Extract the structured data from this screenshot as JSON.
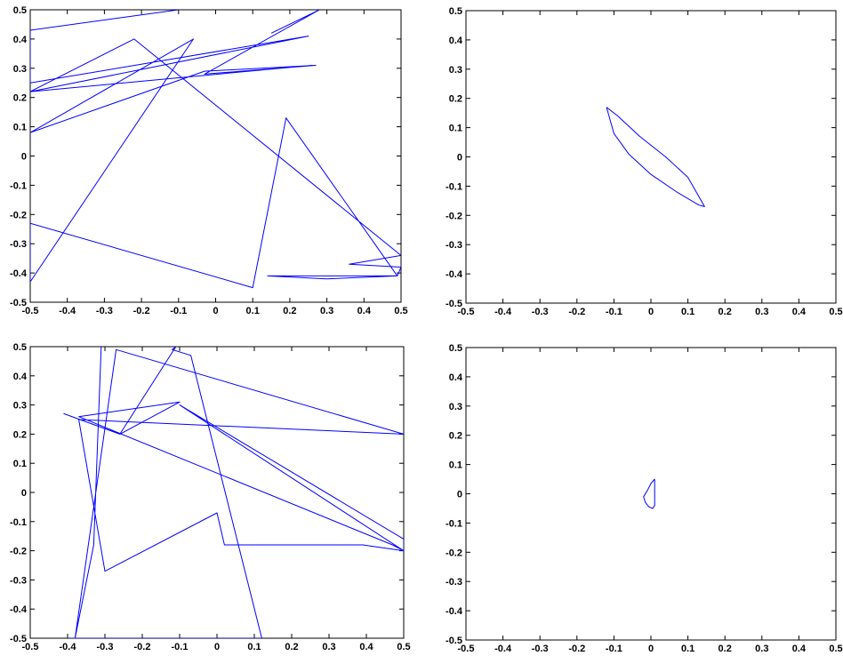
{
  "chart_data": [
    {
      "type": "line",
      "xlim": [
        -0.5,
        0.5
      ],
      "ylim": [
        -0.5,
        0.5
      ],
      "xticks": [
        "-0.5",
        "-0.4",
        "-0.3",
        "-0.2",
        "-0.1",
        "0",
        "0.1",
        "0.2",
        "0.3",
        "0.4",
        "0.5"
      ],
      "yticks": [
        "-0.5",
        "-0.4",
        "-0.3",
        "-0.2",
        "-0.1",
        "0",
        "0.1",
        "0.2",
        "0.3",
        "0.4",
        "0.5"
      ],
      "grid": false,
      "series": [
        {
          "color": "#0000ff",
          "x": [
            -0.1,
            -0.5,
            -0.5,
            0.25,
            -0.5,
            0.26,
            -0.5,
            -0.22,
            0.5,
            0.36,
            0.5,
            0.49,
            0.3,
            0.14,
            0.49,
            0.19,
            0.1,
            -0.5,
            -0.5,
            -0.06,
            -0.5,
            -0.5,
            -0.03,
            0.27,
            -0.03,
            0.28,
            0.15
          ],
          "y": [
            0.5,
            0.43,
            0.25,
            0.41,
            0.22,
            0.31,
            0.22,
            0.4,
            -0.34,
            -0.37,
            -0.38,
            -0.41,
            -0.42,
            -0.41,
            -0.41,
            0.13,
            -0.45,
            -0.23,
            -0.43,
            0.4,
            0.08,
            0.08,
            0.29,
            0.31,
            0.28,
            0.5,
            0.42
          ]
        }
      ]
    },
    {
      "type": "line",
      "xlim": [
        -0.5,
        0.5
      ],
      "ylim": [
        -0.5,
        0.5
      ],
      "xticks": [
        "-0.5",
        "-0.4",
        "-0.3",
        "-0.2",
        "-0.1",
        "0",
        "0.1",
        "0.2",
        "0.3",
        "0.4",
        "0.5"
      ],
      "yticks": [
        "-0.5",
        "-0.4",
        "-0.3",
        "-0.2",
        "-0.1",
        "0",
        "0.1",
        "0.2",
        "0.3",
        "0.4",
        "0.5"
      ],
      "grid": false,
      "series": [
        {
          "color": "#0000ff",
          "x": [
            -0.12,
            -0.09,
            -0.03,
            0.04,
            0.1,
            0.145,
            0.13,
            0.07,
            0.0,
            -0.06,
            -0.1,
            -0.12
          ],
          "y": [
            0.17,
            0.14,
            0.07,
            0.0,
            -0.07,
            -0.17,
            -0.165,
            -0.12,
            -0.06,
            0.01,
            0.08,
            0.17
          ]
        }
      ]
    },
    {
      "type": "line",
      "xlim": [
        -0.5,
        0.5
      ],
      "ylim": [
        -0.5,
        0.5
      ],
      "xticks": [
        "-0.5",
        "-0.4",
        "-0.3",
        "-0.2",
        "-0.1",
        "0",
        "0.1",
        "0.2",
        "0.3",
        "0.4",
        "0.5"
      ],
      "yticks": [
        "-0.5",
        "-0.4",
        "-0.3",
        "-0.2",
        "-0.1",
        "0",
        "0.1",
        "0.2",
        "0.3",
        "0.4",
        "0.5"
      ],
      "grid": false,
      "series": [
        {
          "color": "#0000ff",
          "x": [
            -0.31,
            -0.33,
            -0.38,
            -0.27,
            0.5,
            0.5,
            -0.37,
            -0.3,
            0.0,
            0.02,
            0.39,
            0.5,
            0.5,
            -0.1,
            0.5,
            0.47,
            -0.37,
            -0.1,
            -0.26,
            -0.41,
            -0.26,
            -0.11,
            -0.12,
            -0.07,
            0.12,
            -0.4
          ],
          "y": [
            0.5,
            -0.18,
            -0.5,
            0.49,
            0.2,
            0.2,
            0.25,
            -0.27,
            -0.07,
            -0.18,
            -0.18,
            -0.2,
            -0.16,
            0.3,
            -0.2,
            -0.18,
            0.26,
            0.31,
            0.2,
            0.27,
            0.2,
            0.5,
            0.49,
            0.47,
            -0.5,
            -0.5
          ]
        }
      ]
    },
    {
      "type": "line",
      "xlim": [
        -0.5,
        0.5
      ],
      "ylim": [
        -0.5,
        0.5
      ],
      "xticks": [
        "-0.5",
        "-0.4",
        "-0.3",
        "-0.2",
        "-0.1",
        "0",
        "0.1",
        "0.2",
        "0.3",
        "0.4",
        "0.5"
      ],
      "yticks": [
        "-0.5",
        "-0.4",
        "-0.3",
        "-0.2",
        "-0.1",
        "0",
        "0.1",
        "0.2",
        "0.3",
        "0.4",
        "0.5"
      ],
      "grid": false,
      "series": [
        {
          "color": "#0000ff",
          "x": [
            0.01,
            0.01,
            0.01,
            0.005,
            -0.005,
            -0.015,
            -0.02,
            -0.01,
            0.0,
            0.01
          ],
          "y": [
            0.05,
            0.0,
            -0.04,
            -0.05,
            -0.045,
            -0.03,
            -0.01,
            0.01,
            0.035,
            0.05
          ]
        }
      ]
    }
  ]
}
